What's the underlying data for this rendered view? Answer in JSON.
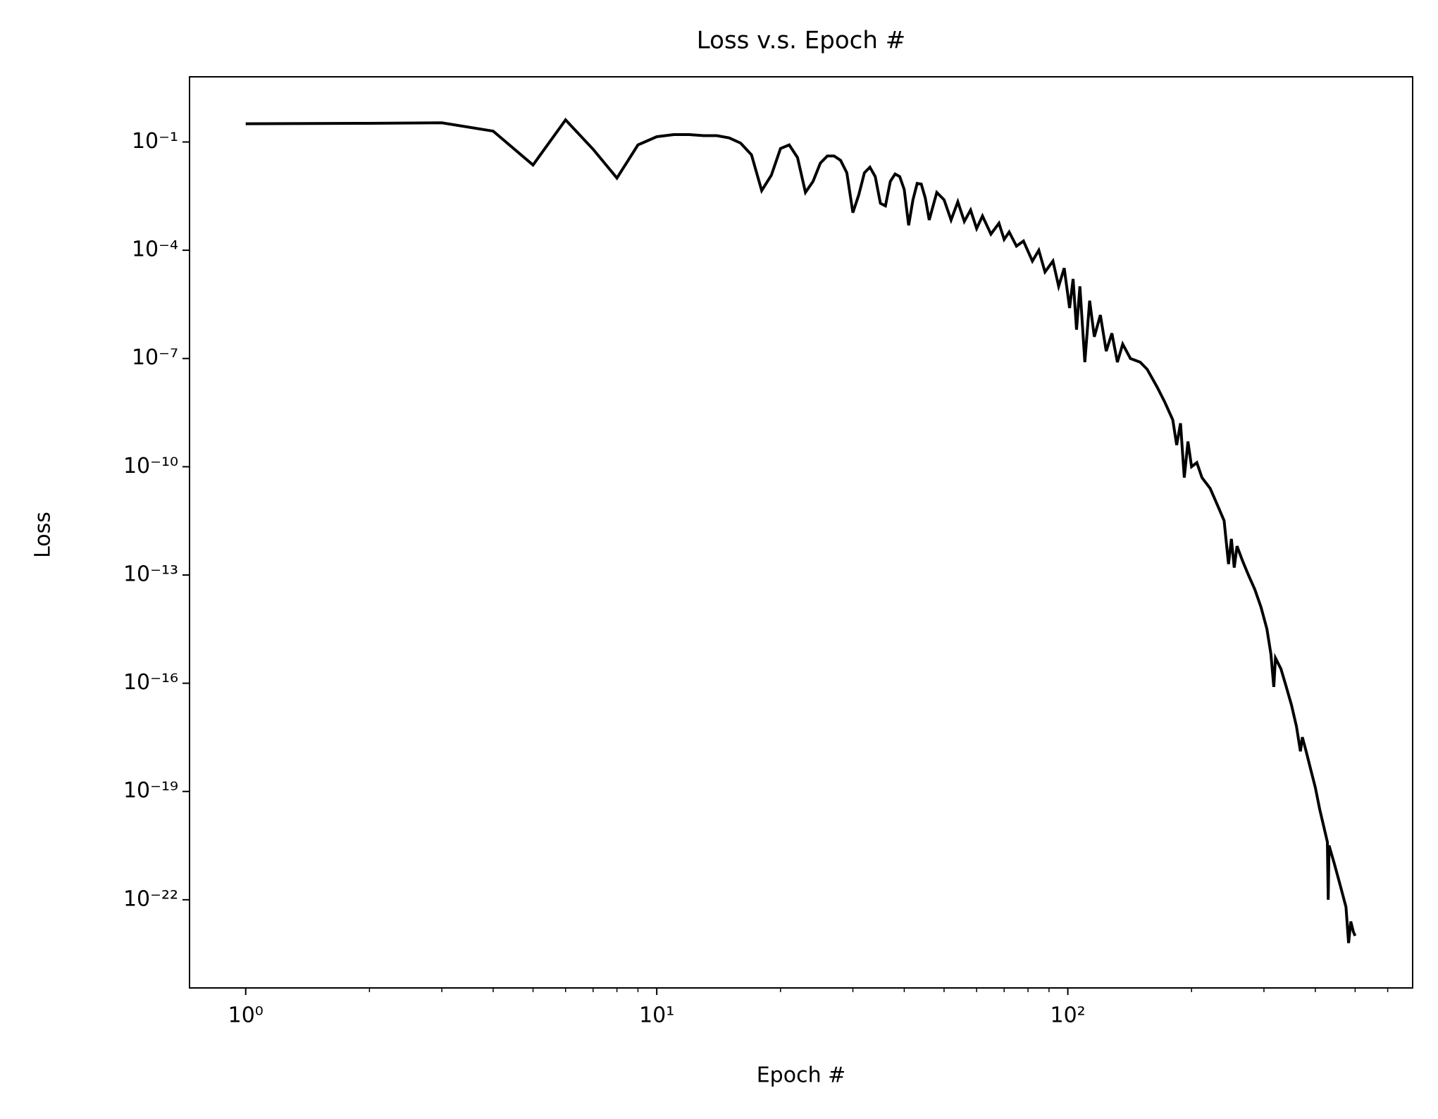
{
  "chart_data": {
    "type": "line",
    "title": "Loss v.s. Epoch #",
    "x_label": "Epoch #",
    "y_label": "Loss",
    "x_scale": "log",
    "y_scale": "log",
    "color": "#000000",
    "xlim": [
      0.73,
      690
    ],
    "ylim": [
      3.6e-25,
      6.4
    ],
    "xticks": [
      {
        "value": 1,
        "label": "10⁰"
      },
      {
        "value": 10,
        "label": "10¹"
      },
      {
        "value": 100,
        "label": "10²"
      }
    ],
    "xminorticks": [
      2,
      3,
      4,
      5,
      6,
      7,
      8,
      9,
      20,
      30,
      40,
      50,
      60,
      70,
      80,
      90,
      200,
      300,
      400,
      500,
      600
    ],
    "yticks": [
      {
        "value": 0.1,
        "label": "10⁻¹"
      },
      {
        "value": 0.0001,
        "label": "10⁻⁴"
      },
      {
        "value": 1e-07,
        "label": "10⁻⁷"
      },
      {
        "value": 1e-10,
        "label": "10⁻¹⁰"
      },
      {
        "value": 1e-13,
        "label": "10⁻¹³"
      },
      {
        "value": 1e-16,
        "label": "10⁻¹⁶"
      },
      {
        "value": 1e-19,
        "label": "10⁻¹⁹"
      },
      {
        "value": 1e-22,
        "label": "10⁻²²"
      }
    ],
    "x": [
      1,
      2,
      3,
      4,
      5,
      6,
      7,
      8,
      9,
      10,
      11,
      12,
      13,
      14,
      15,
      16,
      17,
      18,
      19,
      20,
      21,
      22,
      23,
      24,
      25,
      26,
      27,
      28,
      29,
      30,
      31,
      32,
      33,
      34,
      35,
      36,
      37,
      38,
      39,
      40,
      41,
      42,
      43,
      44,
      45,
      46,
      48,
      50,
      52,
      54,
      56,
      58,
      60,
      62,
      65,
      68,
      70,
      72,
      75,
      78,
      82,
      85,
      88,
      92,
      95,
      98,
      101,
      103,
      105,
      107,
      110,
      113,
      116,
      120,
      124,
      128,
      132,
      136,
      142,
      150,
      156,
      165,
      172,
      180,
      184,
      188,
      192,
      196,
      200,
      206,
      212,
      222,
      232,
      240,
      246,
      250,
      254,
      258,
      266,
      275,
      285,
      295,
      305,
      312,
      317,
      320,
      330,
      340,
      350,
      360,
      368,
      372,
      380,
      390,
      400,
      410,
      420,
      428,
      430,
      432,
      445,
      460,
      475,
      482,
      488,
      495,
      500
    ],
    "values": [
      0.32,
      0.33,
      0.34,
      0.2,
      0.023,
      0.41,
      0.063,
      0.01,
      0.083,
      0.14,
      0.16,
      0.16,
      0.15,
      0.15,
      0.13,
      0.093,
      0.044,
      0.0045,
      0.012,
      0.066,
      0.083,
      0.037,
      0.004,
      0.0081,
      0.026,
      0.041,
      0.041,
      0.031,
      0.014,
      0.0011,
      0.0034,
      0.014,
      0.02,
      0.011,
      0.002,
      0.0017,
      0.0081,
      0.013,
      0.011,
      0.0048,
      0.00049,
      0.0025,
      0.0071,
      0.0068,
      0.0028,
      0.00069,
      0.004,
      0.0025,
      0.00069,
      0.0022,
      0.00063,
      0.0013,
      0.0004,
      0.00089,
      0.00028,
      0.00056,
      0.0002,
      0.00032,
      0.00013,
      0.00018,
      5e-05,
      0.0001,
      2.5e-05,
      5e-05,
      1e-05,
      3.2e-05,
      2.5e-06,
      1.6e-05,
      6.3e-07,
      1e-05,
      7.9e-08,
      4e-06,
      4e-07,
      1.6e-06,
      1.6e-07,
      5e-07,
      7.9e-08,
      2.5e-07,
      1e-07,
      7.9e-08,
      5e-08,
      1.6e-08,
      6.3e-09,
      2e-09,
      4e-10,
      1.6e-09,
      5e-11,
      5e-10,
      1e-10,
      1.3e-10,
      5e-11,
      2.5e-11,
      7.9e-12,
      3.2e-12,
      2e-13,
      1e-12,
      1.6e-13,
      6.3e-13,
      2.5e-13,
      1e-13,
      4e-14,
      1.3e-14,
      3.2e-15,
      6.3e-16,
      7.9e-17,
      5e-16,
      2.5e-16,
      7.9e-17,
      2.5e-17,
      6.3e-18,
      1.3e-18,
      3.2e-18,
      1.3e-18,
      4e-19,
      1.3e-19,
      3.2e-20,
      1e-20,
      4e-21,
      1e-22,
      3.2e-21,
      1e-21,
      2.5e-22,
      6.3e-23,
      6.3e-24,
      2.5e-23,
      1.3e-23,
      1e-23
    ]
  }
}
